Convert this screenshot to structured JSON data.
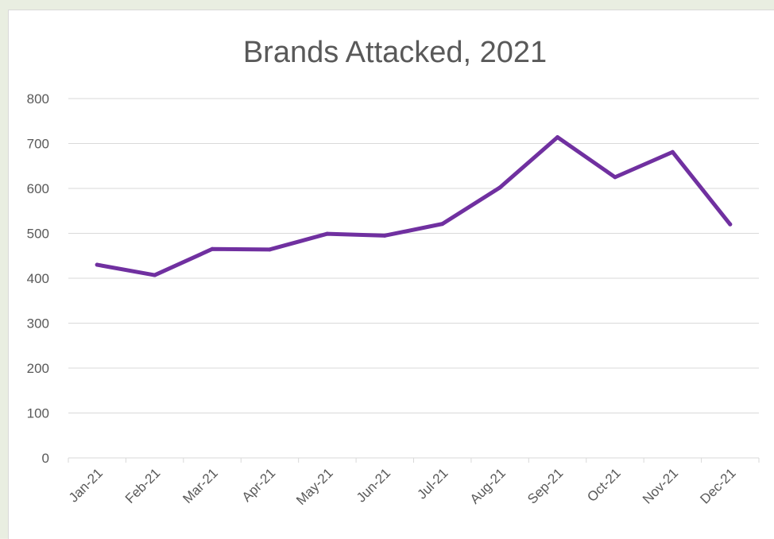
{
  "chart_data": {
    "type": "line",
    "title": "Brands Attacked, 2021",
    "xlabel": "",
    "ylabel": "",
    "categories": [
      "Jan-21",
      "Feb-21",
      "Mar-21",
      "Apr-21",
      "May-21",
      "Jun-21",
      "Jul-21",
      "Aug-21",
      "Sep-21",
      "Oct-21",
      "Nov-21",
      "Dec-21"
    ],
    "series": [
      {
        "color": "#7030a0",
        "values": [
          430,
          407,
          465,
          464,
          499,
          495,
          521,
          602,
          714,
          625,
          681,
          520
        ]
      }
    ],
    "ylim": [
      0,
      800
    ],
    "yticks": [
      "0",
      "100",
      "200",
      "300",
      "400",
      "500",
      "600",
      "700",
      "800"
    ],
    "grid": true,
    "legend": "none"
  }
}
